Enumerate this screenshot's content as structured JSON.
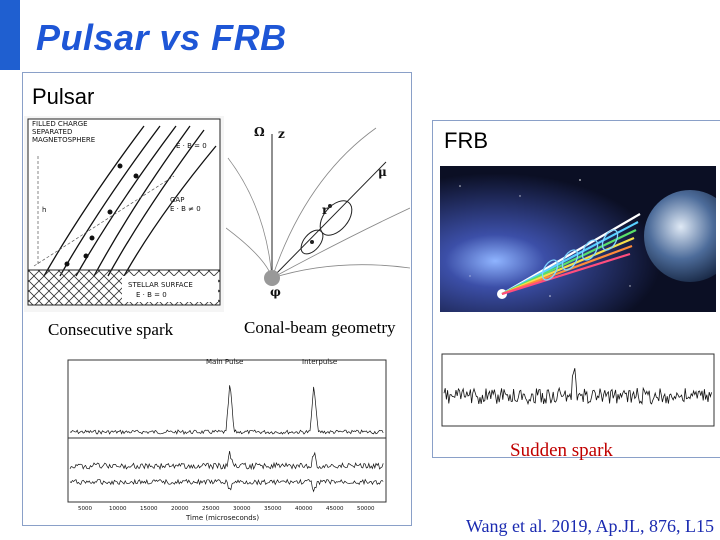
{
  "slide": {
    "title": "Pulsar vs FRB",
    "pulsar_label": "Pulsar",
    "frb_label": "FRB",
    "consecutive_spark_caption": "Consecutive spark",
    "conal_beam_caption": "Conal-beam geometry",
    "sudden_spark_caption": "Sudden spark",
    "reference": "Wang et al. 2019, Ap.JL, 876, L15"
  },
  "gap_diagram": {
    "legend_lines": [
      "FILLED CHARGE",
      "SEPARATED",
      "MAGNETOSPHERE"
    ],
    "upper_eq": "E · B = 0",
    "gap_label": "GAP",
    "gap_eq": "E · B ≠ 0",
    "surface_lines": [
      "STELLAR SURFACE",
      "E · B = 0"
    ],
    "height_label": "h"
  },
  "conal_diagram": {
    "labels": [
      "Ω",
      "z",
      "μ",
      "r",
      "φ"
    ]
  },
  "pulse_profile": {
    "main_pulse_label": "Main Pulse",
    "interpulse_label": "Interpulse",
    "x_axis_label": "Time (microseconds)",
    "x_ticks": [
      "5000",
      "10000",
      "15000",
      "20000",
      "25000",
      "30000",
      "35000",
      "40000",
      "45000",
      "50000"
    ]
  },
  "colors": {
    "title": "#1e56d6",
    "accent_bar": "#1f5fd0",
    "sudden_spark": "#c00000",
    "reference": "#1a2ab0",
    "panel_border": "#8aa0c8"
  }
}
